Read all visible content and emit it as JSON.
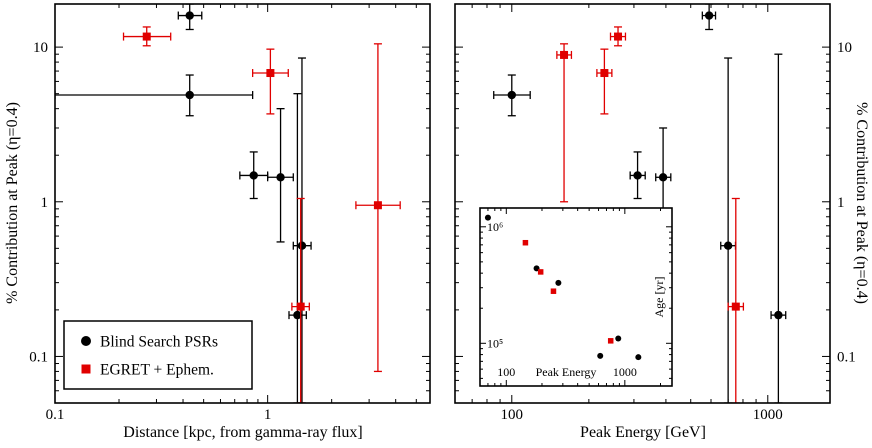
{
  "figure": {
    "background": "#ffffff",
    "black": "#000000",
    "red": "#e00000"
  },
  "chart_data": [
    {
      "id": "distance-panel",
      "type": "scatter",
      "title": "",
      "xlabel": "Distance [kpc, from gamma-ray flux]",
      "ylabel": "% Contribution at Peak (η=0.4)",
      "xscale": "log",
      "yscale": "log",
      "xlim": [
        0.1,
        5.8
      ],
      "ylim": [
        0.05,
        19
      ],
      "grid": false,
      "x_ticks": [
        {
          "v": 0.1,
          "label": "0.1"
        },
        {
          "v": 1,
          "label": "1"
        }
      ],
      "y_ticks": [
        {
          "v": 0.1,
          "label": "0.1"
        },
        {
          "v": 1,
          "label": "1"
        },
        {
          "v": 10,
          "label": "10"
        }
      ],
      "legend_position": "lower-left",
      "series": [
        {
          "name": "Blind Search PSRs",
          "marker": "circle",
          "color": "#000000",
          "points": [
            {
              "x": 0.43,
              "y": 16,
              "xlo": 0.38,
              "xhi": 0.49,
              "ylo": 13,
              "yhi": 19
            },
            {
              "x": 0.43,
              "y": 4.9,
              "xlo": 0.1,
              "xhi": 0.85,
              "ylo": 3.6,
              "yhi": 6.6
            },
            {
              "x": 0.86,
              "y": 1.48,
              "xlo": 0.74,
              "xhi": 1.0,
              "ylo": 1.05,
              "yhi": 2.1
            },
            {
              "x": 1.15,
              "y": 1.44,
              "xlo": 1.0,
              "xhi": 1.32,
              "ylo": 0.55,
              "yhi": 4.0
            },
            {
              "x": 1.45,
              "y": 0.52,
              "xlo": 1.32,
              "xhi": 1.6,
              "ylo": 0.05,
              "yhi": 8.5
            },
            {
              "x": 1.38,
              "y": 0.185,
              "xlo": 1.26,
              "xhi": 1.52,
              "ylo": 0.05,
              "yhi": 5.0
            }
          ]
        },
        {
          "name": "EGRET + Ephem.",
          "marker": "square",
          "color": "#e00000",
          "points": [
            {
              "x": 0.27,
              "y": 11.7,
              "xlo": 0.21,
              "xhi": 0.35,
              "ylo": 10.2,
              "yhi": 13.5
            },
            {
              "x": 1.03,
              "y": 6.8,
              "xlo": 0.85,
              "xhi": 1.25,
              "ylo": 3.7,
              "yhi": 9.7
            },
            {
              "x": 1.43,
              "y": 0.21,
              "xlo": 1.3,
              "xhi": 1.57,
              "ylo": 0.05,
              "yhi": 1.05
            },
            {
              "x": 3.3,
              "y": 0.95,
              "xlo": 2.6,
              "xhi": 4.2,
              "ylo": 0.08,
              "yhi": 10.5
            }
          ]
        }
      ]
    },
    {
      "id": "peak-energy-panel",
      "type": "scatter",
      "title": "",
      "xlabel": "Peak Energy [GeV]",
      "ylabel": "% Contribution at Peak (η=0.4)",
      "xscale": "log",
      "yscale": "log",
      "xlim": [
        60,
        1750
      ],
      "ylim": [
        0.05,
        19
      ],
      "grid": false,
      "x_ticks": [
        {
          "v": 100,
          "label": "100"
        },
        {
          "v": 1000,
          "label": "1000"
        }
      ],
      "y_ticks": [
        {
          "v": 0.1,
          "label": "0.1"
        },
        {
          "v": 1,
          "label": "1"
        },
        {
          "v": 10,
          "label": "10"
        }
      ],
      "series": [
        {
          "name": "Blind Search PSRs",
          "marker": "circle",
          "color": "#000000",
          "points": [
            {
              "x": 100,
              "y": 4.9,
              "xlo": 85,
              "xhi": 118,
              "ylo": 3.6,
              "yhi": 6.6
            },
            {
              "x": 590,
              "y": 16,
              "xlo": 555,
              "xhi": 625,
              "ylo": 13,
              "yhi": 19
            },
            {
              "x": 310,
              "y": 1.48,
              "xlo": 290,
              "xhi": 332,
              "ylo": 1.05,
              "yhi": 2.1
            },
            {
              "x": 390,
              "y": 1.44,
              "xlo": 365,
              "xhi": 418,
              "ylo": 0.55,
              "yhi": 3.0
            },
            {
              "x": 700,
              "y": 0.52,
              "xlo": 655,
              "xhi": 748,
              "ylo": 0.05,
              "yhi": 8.5
            },
            {
              "x": 1100,
              "y": 0.185,
              "xlo": 1030,
              "xhi": 1175,
              "ylo": 0.05,
              "yhi": 9.0
            }
          ]
        },
        {
          "name": "EGRET + Ephem.",
          "marker": "square",
          "color": "#e00000",
          "points": [
            {
              "x": 260,
              "y": 11.7,
              "xlo": 243,
              "xhi": 278,
              "ylo": 10.2,
              "yhi": 13.5
            },
            {
              "x": 230,
              "y": 6.8,
              "xlo": 215,
              "xhi": 246,
              "ylo": 3.7,
              "yhi": 9.7
            },
            {
              "x": 160,
              "y": 8.9,
              "xlo": 150,
              "xhi": 171,
              "ylo": 1.0,
              "yhi": 10.5
            },
            {
              "x": 750,
              "y": 0.21,
              "xlo": 700,
              "xhi": 803,
              "ylo": 0.05,
              "yhi": 1.05
            }
          ]
        }
      ]
    },
    {
      "id": "age-inset-panel",
      "type": "scatter",
      "title": "",
      "xlabel": "Peak Energy",
      "ylabel": "Age [yr]",
      "xscale": "log",
      "yscale": "log",
      "xlim": [
        60,
        2500
      ],
      "ylim": [
        43000,
        1450000
      ],
      "grid": false,
      "x_ticks": [
        {
          "v": 100,
          "label": "100"
        },
        {
          "v": 1000,
          "label": "1000"
        }
      ],
      "y_ticks": [
        {
          "v": 100000,
          "label": "10⁵"
        },
        {
          "v": 1000000,
          "label": "10⁶"
        }
      ],
      "series": [
        {
          "name": "Blind Search PSRs",
          "marker": "circle",
          "color": "#000000",
          "points": [
            {
              "x": 70,
              "y": 1200000
            },
            {
              "x": 180,
              "y": 440000
            },
            {
              "x": 275,
              "y": 330000
            },
            {
              "x": 620,
              "y": 78000
            },
            {
              "x": 880,
              "y": 110000
            },
            {
              "x": 1300,
              "y": 76000
            }
          ]
        },
        {
          "name": "EGRET + Ephem.",
          "marker": "square",
          "color": "#e00000",
          "points": [
            {
              "x": 145,
              "y": 730000
            },
            {
              "x": 195,
              "y": 410000
            },
            {
              "x": 250,
              "y": 280000
            },
            {
              "x": 760,
              "y": 105000
            }
          ]
        }
      ]
    }
  ]
}
